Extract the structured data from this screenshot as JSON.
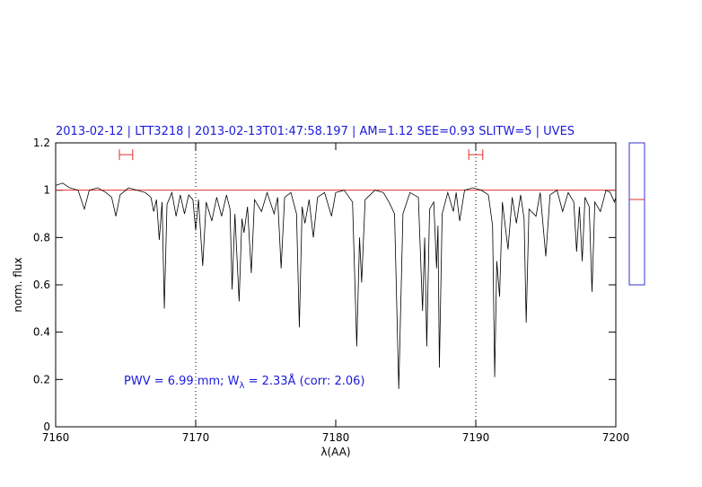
{
  "chart_data": {
    "type": "line",
    "title": "2013-02-12 | LTT3218 | 2013-02-13T01:47:58.197 | AM=1.12 SEE=0.93 SLITW=5 | UVES",
    "xlabel": "λ(AA)",
    "ylabel": "norm. flux",
    "annotation": {
      "before": "PWV = 6.99 mm; W",
      "sub": "λ",
      "after": " = 2.33Å (corr: 2.06)"
    },
    "xlim": [
      7160,
      7200
    ],
    "ylim": [
      0,
      1.2
    ],
    "xticks": [
      7160,
      7170,
      7180,
      7190,
      7200
    ],
    "yticks": [
      0,
      0.2,
      0.4,
      0.6,
      0.8,
      1,
      1.2
    ],
    "color": "#000000",
    "hline": {
      "value": 1,
      "color": "#e03030"
    },
    "vlines": [
      7170,
      7190
    ],
    "markers": [
      {
        "x": [
          7164.55,
          7165.5
        ],
        "y": 1.15
      },
      {
        "x": [
          7189.5,
          7190.5
        ],
        "y": 1.15
      }
    ],
    "x": [
      7160.0,
      7160.5,
      7161.0,
      7161.6,
      7162.05,
      7162.4,
      7163.0,
      7163.6,
      7164.0,
      7164.3,
      7164.6,
      7165.2,
      7165.8,
      7166.4,
      7166.8,
      7167.0,
      7167.2,
      7167.4,
      7167.6,
      7167.76,
      7167.95,
      7168.3,
      7168.6,
      7168.9,
      7169.2,
      7169.5,
      7169.8,
      7170.0,
      7170.2,
      7170.5,
      7170.75,
      7171.15,
      7171.5,
      7171.85,
      7172.2,
      7172.45,
      7172.6,
      7172.8,
      7173.1,
      7173.3,
      7173.45,
      7173.7,
      7173.97,
      7174.2,
      7174.7,
      7175.1,
      7175.6,
      7175.85,
      7176.1,
      7176.35,
      7176.8,
      7177.2,
      7177.4,
      7177.6,
      7177.8,
      7178.1,
      7178.4,
      7178.7,
      7179.2,
      7179.7,
      7180.0,
      7180.6,
      7181.2,
      7181.5,
      7181.7,
      7181.85,
      7182.1,
      7182.8,
      7183.4,
      7183.8,
      7184.2,
      7184.5,
      7184.8,
      7185.3,
      7185.9,
      7186.2,
      7186.35,
      7186.5,
      7186.7,
      7187.0,
      7187.2,
      7187.3,
      7187.4,
      7187.6,
      7188.0,
      7188.4,
      7188.6,
      7188.85,
      7189.2,
      7189.8,
      7190.4,
      7190.9,
      7191.2,
      7191.35,
      7191.5,
      7191.7,
      7191.9,
      7192.3,
      7192.6,
      7192.9,
      7193.2,
      7193.45,
      7193.6,
      7193.8,
      7194.3,
      7194.6,
      7195.0,
      7195.3,
      7195.8,
      7196.2,
      7196.6,
      7197.0,
      7197.2,
      7197.4,
      7197.6,
      7197.8,
      7198.1,
      7198.3,
      7198.5,
      7198.9,
      7199.3,
      7199.6,
      7199.9,
      7200.0
    ],
    "values": [
      1.02,
      1.03,
      1.01,
      1.0,
      0.92,
      1.0,
      1.01,
      0.99,
      0.97,
      0.89,
      0.98,
      1.01,
      1.0,
      0.99,
      0.97,
      0.91,
      0.96,
      0.79,
      0.95,
      0.5,
      0.94,
      0.99,
      0.89,
      0.98,
      0.9,
      0.98,
      0.96,
      0.83,
      0.96,
      0.68,
      0.95,
      0.87,
      0.97,
      0.89,
      0.98,
      0.92,
      0.58,
      0.9,
      0.53,
      0.88,
      0.82,
      0.93,
      0.65,
      0.96,
      0.91,
      0.99,
      0.9,
      0.97,
      0.67,
      0.97,
      0.99,
      0.9,
      0.42,
      0.93,
      0.86,
      0.96,
      0.8,
      0.97,
      0.99,
      0.89,
      0.99,
      1.0,
      0.95,
      0.34,
      0.8,
      0.61,
      0.96,
      1.0,
      0.99,
      0.95,
      0.9,
      0.16,
      0.9,
      0.99,
      0.97,
      0.49,
      0.8,
      0.34,
      0.92,
      0.95,
      0.67,
      0.85,
      0.25,
      0.9,
      0.99,
      0.91,
      0.99,
      0.87,
      1.0,
      1.01,
      1.0,
      0.98,
      0.85,
      0.21,
      0.7,
      0.55,
      0.95,
      0.75,
      0.97,
      0.86,
      0.98,
      0.88,
      0.44,
      0.92,
      0.89,
      0.99,
      0.72,
      0.98,
      1.0,
      0.91,
      0.99,
      0.95,
      0.74,
      0.93,
      0.7,
      0.97,
      0.93,
      0.57,
      0.95,
      0.91,
      1.0,
      0.99,
      0.95,
      0.97
    ]
  }
}
